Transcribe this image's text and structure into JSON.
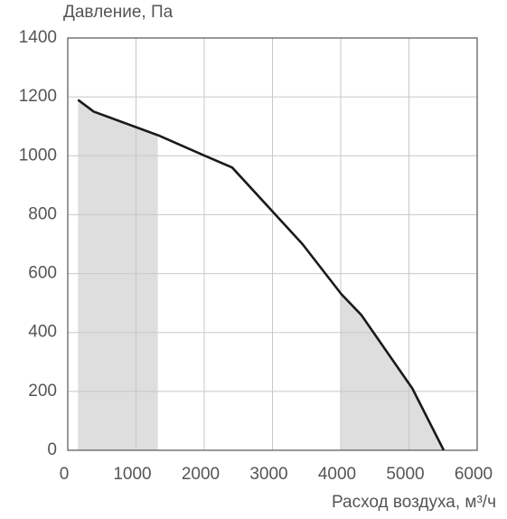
{
  "chart_data": {
    "type": "line",
    "y_label": "Давление, Па",
    "x_label": "Расход воздуха, м³/ч",
    "x": [
      150,
      380,
      1320,
      2010,
      2410,
      3440,
      4010,
      4300,
      5050,
      5510
    ],
    "series": [
      {
        "color": "#1a1a1a",
        "values": [
          1190,
          1150,
          1070,
          1000,
          960,
          700,
          530,
          460,
          210,
          0
        ]
      }
    ],
    "shaded_ranges": [
      [
        150,
        1320
      ],
      [
        4000,
        5510
      ]
    ],
    "shade_color": "#dedede",
    "xlim": [
      0,
      6000
    ],
    "xticks": [
      0,
      1000,
      2000,
      3000,
      4000,
      5000,
      6000
    ],
    "ylim": [
      0,
      1400
    ],
    "yticks": [
      0,
      200,
      400,
      600,
      800,
      1000,
      1200,
      1400
    ],
    "grid": true
  }
}
